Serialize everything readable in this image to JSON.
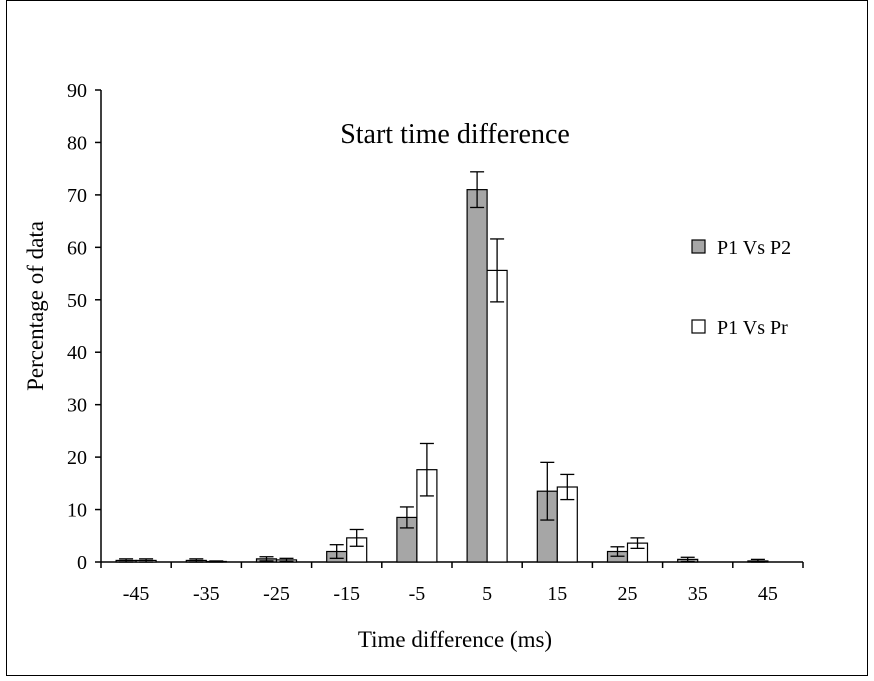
{
  "chart_data": {
    "type": "bar",
    "title": "Start time difference",
    "xlabel": "Time difference (ms)",
    "ylabel": "Percentage of data",
    "categories": [
      "-45",
      "-35",
      "-25",
      "-15",
      "-5",
      "5",
      "15",
      "25",
      "35",
      "45"
    ],
    "ylim": [
      0,
      90
    ],
    "yticks": [
      0,
      10,
      20,
      30,
      40,
      50,
      60,
      70,
      80,
      90
    ],
    "grid": false,
    "legend_position": "right",
    "error_bars": true,
    "series": [
      {
        "name": "P1 Vs P2",
        "color": "#a6a6a6",
        "values": [
          0.3,
          0.3,
          0.6,
          2.0,
          8.5,
          71.0,
          13.5,
          2.0,
          0.5,
          0.2
        ],
        "errors": [
          0.3,
          0.3,
          0.4,
          1.3,
          2.0,
          3.4,
          5.5,
          0.9,
          0.4,
          0.3
        ]
      },
      {
        "name": "P1 Vs Pr",
        "color": "#ffffff",
        "values": [
          0.3,
          0.1,
          0.4,
          4.6,
          17.6,
          55.6,
          14.3,
          3.6,
          0.0,
          0.0
        ],
        "errors": [
          0.3,
          0.1,
          0.3,
          1.6,
          5.0,
          6.0,
          2.4,
          1.0,
          0.0,
          0.0
        ]
      }
    ]
  }
}
